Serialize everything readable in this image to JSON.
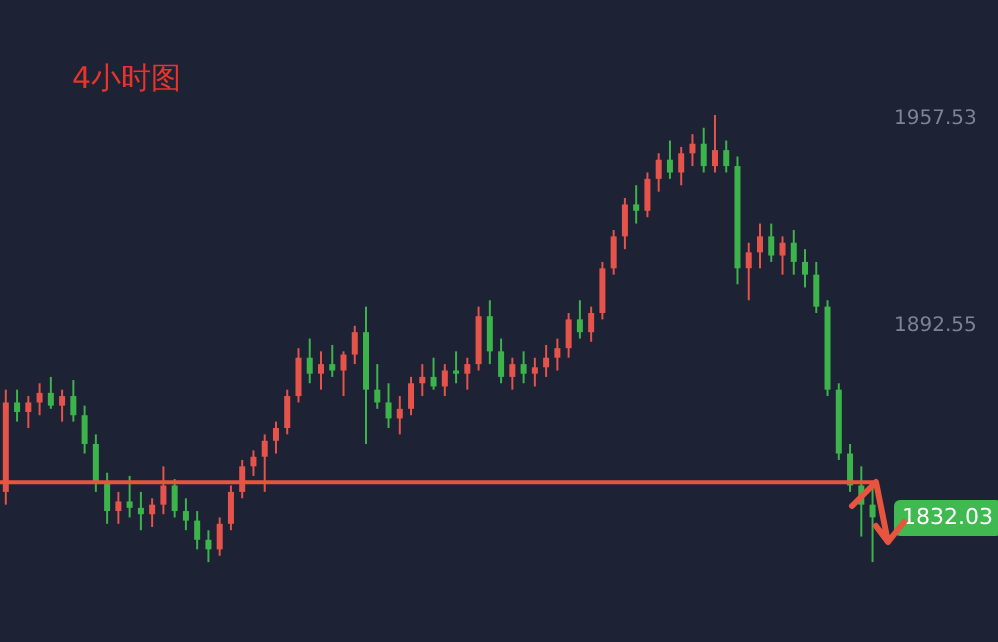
{
  "chart_data": {
    "type": "candlestick",
    "title": "4小时图",
    "colors": [
      "#e5534b",
      "#3cb44b",
      "#e5534b",
      "#e5534b",
      "#3cb44b",
      "#e5534b",
      "#3cb44b",
      "#3cb44b",
      "#3cb44b",
      "#3cb44b",
      "#e5534b",
      "#3cb44b",
      "#3cb44b",
      "#e5534b",
      "#e5534b",
      "#3cb44b",
      "#3cb44b",
      "#3cb44b",
      "#3cb44b",
      "#e5534b",
      "#e5534b",
      "#e5534b",
      "#e5534b",
      "#e5534b",
      "#e5534b",
      "#e5534b",
      "#e5534b",
      "#3cb44b",
      "#e5534b",
      "#3cb44b",
      "#e5534b",
      "#e5534b",
      "#3cb44b",
      "#3cb44b",
      "#3cb44b",
      "#e5534b",
      "#e5534b",
      "#e5534b",
      "#3cb44b",
      "#e5534b",
      "#3cb44b",
      "#e5534b",
      "#e5534b",
      "#3cb44b",
      "#3cb44b",
      "#e5534b",
      "#3cb44b",
      "#e5534b",
      "#e5534b",
      "#e5534b",
      "#e5534b",
      "#3cb44b",
      "#e5534b",
      "#e5534b",
      "#e5534b",
      "#e5534b",
      "#3cb44b",
      "#e5534b",
      "#e5534b",
      "#3cb44b",
      "#e5534b",
      "#e5534b",
      "#3cb44b",
      "#e5534b",
      "#3cb44b",
      "#3cb44b",
      "#e5534b",
      "#e5534b",
      "#3cb44b",
      "#e5534b",
      "#3cb44b",
      "#3cb44b",
      "#3cb44b",
      "#3cb44b",
      "#3cb44b",
      "#3cb44b",
      "#3cb44b",
      "#3cb44b"
    ],
    "categories": [
      null,
      null,
      null,
      null,
      null,
      null,
      null,
      null,
      null,
      null,
      null,
      null,
      null,
      null,
      null,
      null,
      null,
      null,
      null,
      null,
      null,
      null,
      null,
      null,
      null,
      null,
      null,
      null,
      null,
      null,
      null,
      null,
      null,
      null,
      null,
      null,
      null,
      null,
      null,
      null,
      null,
      null,
      null,
      null,
      null,
      null,
      null,
      null,
      null,
      null,
      null,
      null,
      null,
      null,
      null,
      null,
      null,
      null,
      null,
      null,
      null,
      null,
      null,
      null,
      null,
      null,
      null,
      null,
      null,
      null,
      null,
      null,
      null,
      null,
      null,
      null,
      null,
      null
    ],
    "ohlc": [
      [
        1840,
        1872,
        1836,
        1868
      ],
      [
        1868,
        1872,
        1862,
        1865
      ],
      [
        1865,
        1870,
        1860,
        1868
      ],
      [
        1868,
        1874,
        1864,
        1871
      ],
      [
        1871,
        1876,
        1866,
        1867
      ],
      [
        1867,
        1872,
        1862,
        1870
      ],
      [
        1870,
        1875,
        1862,
        1864
      ],
      [
        1864,
        1867,
        1852,
        1855
      ],
      [
        1855,
        1858,
        1840,
        1843
      ],
      [
        1843,
        1846,
        1830,
        1834
      ],
      [
        1834,
        1840,
        1830,
        1837
      ],
      [
        1837,
        1845,
        1832,
        1835
      ],
      [
        1835,
        1840,
        1828,
        1833
      ],
      [
        1833,
        1838,
        1829,
        1836
      ],
      [
        1836,
        1848,
        1833,
        1842
      ],
      [
        1842,
        1844,
        1832,
        1834
      ],
      [
        1834,
        1838,
        1828,
        1831
      ],
      [
        1831,
        1834,
        1822,
        1825
      ],
      [
        1825,
        1828,
        1818,
        1822
      ],
      [
        1822,
        1832,
        1820,
        1830
      ],
      [
        1830,
        1842,
        1828,
        1840
      ],
      [
        1840,
        1850,
        1838,
        1848
      ],
      [
        1848,
        1853,
        1845,
        1851
      ],
      [
        1851,
        1858,
        1840,
        1856
      ],
      [
        1856,
        1862,
        1852,
        1860
      ],
      [
        1860,
        1872,
        1858,
        1870
      ],
      [
        1870,
        1885,
        1868,
        1882
      ],
      [
        1882,
        1888,
        1874,
        1877
      ],
      [
        1877,
        1884,
        1872,
        1880
      ],
      [
        1880,
        1886,
        1876,
        1878
      ],
      [
        1878,
        1884,
        1870,
        1883
      ],
      [
        1883,
        1892,
        1880,
        1890
      ],
      [
        1890,
        1898,
        1855,
        1872
      ],
      [
        1872,
        1880,
        1866,
        1868
      ],
      [
        1868,
        1874,
        1860,
        1863
      ],
      [
        1863,
        1870,
        1858,
        1866
      ],
      [
        1866,
        1876,
        1864,
        1874
      ],
      [
        1874,
        1880,
        1870,
        1876
      ],
      [
        1876,
        1882,
        1872,
        1873
      ],
      [
        1873,
        1880,
        1870,
        1878
      ],
      [
        1878,
        1884,
        1874,
        1877
      ],
      [
        1877,
        1882,
        1872,
        1880
      ],
      [
        1880,
        1898,
        1878,
        1895
      ],
      [
        1895,
        1900,
        1880,
        1884
      ],
      [
        1884,
        1888,
        1874,
        1876
      ],
      [
        1876,
        1882,
        1872,
        1880
      ],
      [
        1880,
        1884,
        1874,
        1877
      ],
      [
        1877,
        1882,
        1873,
        1879
      ],
      [
        1879,
        1886,
        1876,
        1882
      ],
      [
        1882,
        1888,
        1878,
        1885
      ],
      [
        1885,
        1896,
        1882,
        1894
      ],
      [
        1894,
        1900,
        1888,
        1890
      ],
      [
        1890,
        1898,
        1887,
        1896
      ],
      [
        1896,
        1912,
        1894,
        1910
      ],
      [
        1910,
        1922,
        1908,
        1920
      ],
      [
        1920,
        1932,
        1916,
        1930
      ],
      [
        1930,
        1936,
        1924,
        1928
      ],
      [
        1928,
        1940,
        1926,
        1938
      ],
      [
        1938,
        1946,
        1934,
        1944
      ],
      [
        1944,
        1950,
        1938,
        1940
      ],
      [
        1940,
        1948,
        1936,
        1946
      ],
      [
        1946,
        1952,
        1942,
        1949
      ],
      [
        1949,
        1954,
        1940,
        1942
      ],
      [
        1942,
        1958,
        1940,
        1947
      ],
      [
        1947,
        1950,
        1940,
        1942
      ],
      [
        1942,
        1945,
        1905,
        1910
      ],
      [
        1910,
        1918,
        1900,
        1915
      ],
      [
        1915,
        1924,
        1910,
        1920
      ],
      [
        1920,
        1924,
        1912,
        1914
      ],
      [
        1914,
        1920,
        1908,
        1918
      ],
      [
        1918,
        1922,
        1908,
        1912
      ],
      [
        1912,
        1916,
        1904,
        1908
      ],
      [
        1908,
        1912,
        1896,
        1898
      ],
      [
        1898,
        1900,
        1870,
        1872
      ],
      [
        1872,
        1874,
        1850,
        1852
      ],
      [
        1852,
        1855,
        1840,
        1842
      ],
      [
        1842,
        1848,
        1826,
        1836
      ],
      [
        1836,
        1842,
        1818,
        1832.03
      ]
    ],
    "ylim": [
      1793,
      1994
    ],
    "yticks": [
      1957.53,
      1892.55
    ],
    "ref_lines": [
      {
        "axis": "y",
        "value": 1843,
        "color": "#e8553f"
      }
    ],
    "annotations": [
      "1832.03"
    ]
  }
}
